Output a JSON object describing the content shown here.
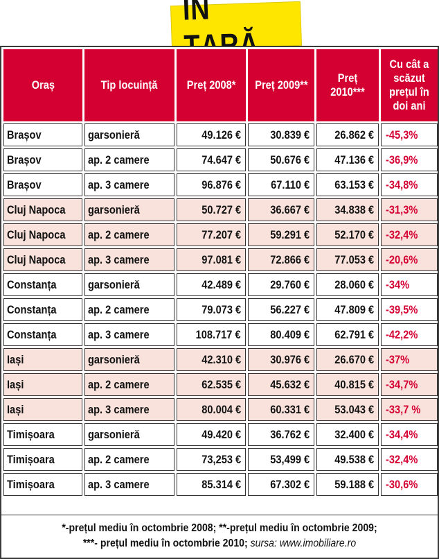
{
  "title": "ÎN ȚARĂ",
  "colors": {
    "header_bg": "#d50032",
    "title_bg": "#ffe600",
    "alt_row_bg": "#f9e2dc",
    "diff_text": "#d50032"
  },
  "headers": [
    "Oraș",
    "Tip locuință",
    "Preț 2008*",
    "Preț 2009**",
    "Preț 2010***",
    "Cu cât a scăzut prețul în doi ani"
  ],
  "rows": [
    {
      "city": "Brașov",
      "type": "garsonieră",
      "p2008": "49.126 €",
      "p2009": "30.839 €",
      "p2010": "26.862 €",
      "diff": "-45,3%"
    },
    {
      "city": "Brașov",
      "type": "ap. 2 camere",
      "p2008": "74.647 €",
      "p2009": "50.676 €",
      "p2010": "47.136 €",
      "diff": "-36,9%"
    },
    {
      "city": "Brașov",
      "type": "ap. 3 camere",
      "p2008": "96.876 €",
      "p2009": "67.110 €",
      "p2010": "63.153 €",
      "diff": "-34,8%"
    },
    {
      "city": "Cluj Napoca",
      "type": "garsonieră",
      "p2008": "50.727 €",
      "p2009": "36.667 €",
      "p2010": "34.838 €",
      "diff": "-31,3%"
    },
    {
      "city": "Cluj Napoca",
      "type": "ap. 2 camere",
      "p2008": "77.207 €",
      "p2009": "59.291 €",
      "p2010": "52.170 €",
      "diff": "-32,4%"
    },
    {
      "city": "Cluj Napoca",
      "type": "ap. 3 camere",
      "p2008": "97.081 €",
      "p2009": "72.866 €",
      "p2010": "77.053 €",
      "diff": "-20,6%"
    },
    {
      "city": "Constanța",
      "type": "garsonieră",
      "p2008": "42.489 €",
      "p2009": "29.760 €",
      "p2010": "28.060 €",
      "diff": "-34%"
    },
    {
      "city": "Constanța",
      "type": "ap. 2 camere",
      "p2008": "79.073 €",
      "p2009": "56.227 €",
      "p2010": "47.809 €",
      "diff": "-39,5%"
    },
    {
      "city": "Constanța",
      "type": "ap. 3 camere",
      "p2008": "108.717 €",
      "p2009": "80.409 €",
      "p2010": "62.791 €",
      "diff": "-42,2%"
    },
    {
      "city": "Iași",
      "type": "garsonieră",
      "p2008": "42.310 €",
      "p2009": "30.976 €",
      "p2010": "26.670 €",
      "diff": "-37%"
    },
    {
      "city": "Iași",
      "type": "ap. 2 camere",
      "p2008": "62.535 €",
      "p2009": "45.632 €",
      "p2010": "40.815 €",
      "diff": "-34,7%"
    },
    {
      "city": "Iași",
      "type": "ap. 3 camere",
      "p2008": "80.004 €",
      "p2009": "60.331 €",
      "p2010": "53.043 €",
      "diff": "-33,7 %"
    },
    {
      "city": "Timișoara",
      "type": "garsonieră",
      "p2008": "49.420 €",
      "p2009": "36.762 €",
      "p2010": "32.400 €",
      "diff": "-34,4%"
    },
    {
      "city": "Timișoara",
      "type": "ap. 2 camere",
      "p2008": "73,253 €",
      "p2009": "53,499 €",
      "p2010": "49.538 €",
      "diff": "-32,4%"
    },
    {
      "city": "Timișoara",
      "type": "ap. 3 camere",
      "p2008": "85.314 €",
      "p2009": "67.302 €",
      "p2010": "59.188 €",
      "diff": "-30,6%"
    }
  ],
  "footnote": {
    "line1": "*-prețul mediu în octombrie 2008; **-prețul mediu în octombrie 2009;",
    "line2_prefix": "***- prețul mediu în octombrie 2010;",
    "line2_source": " sursa: www.imobiliare.ro"
  }
}
